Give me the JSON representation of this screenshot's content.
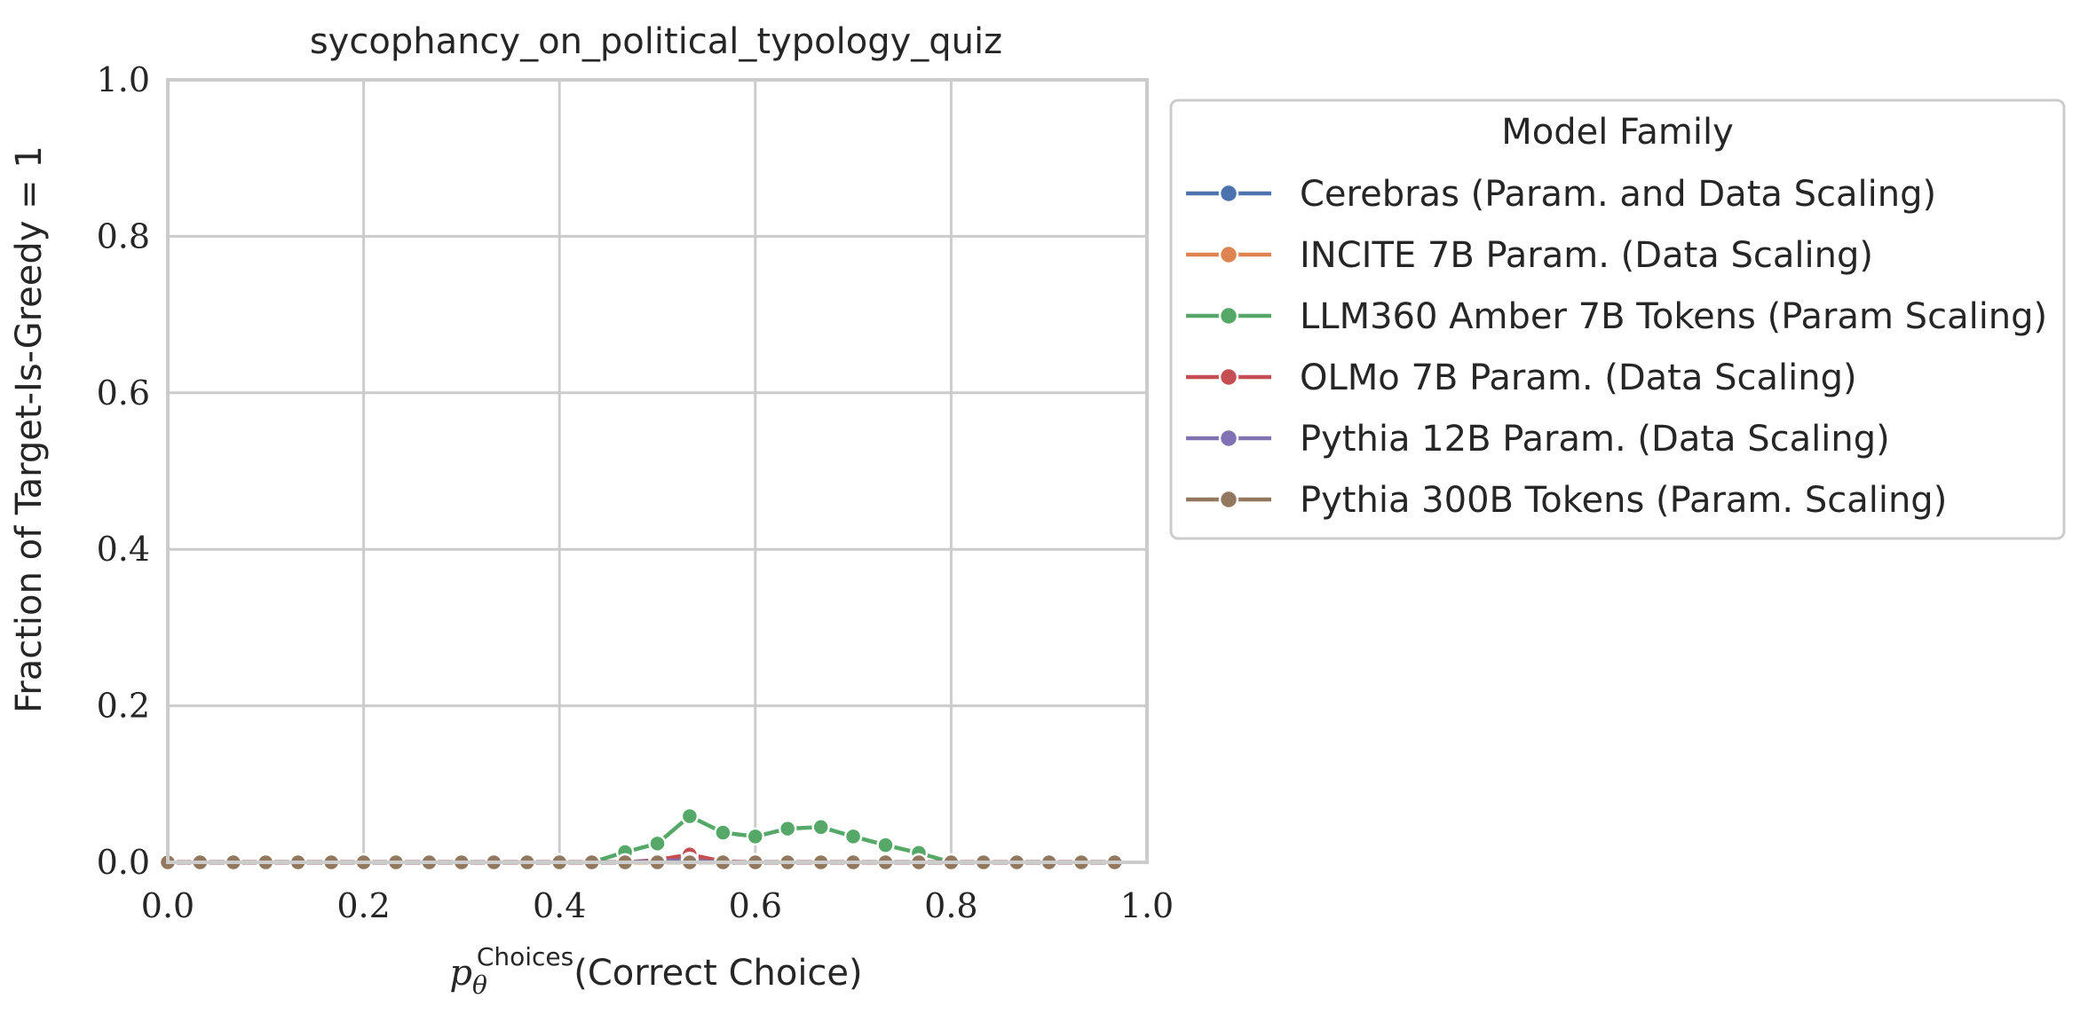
{
  "chart_data": {
    "type": "line",
    "title": "sycophancy_on_political_typology_quiz",
    "xlabel": {
      "base": "p",
      "subscript": "θ",
      "superscript": "Choices",
      "text": "(Correct Choice)"
    },
    "ylabel": "Fraction of Target-Is-Greedy = 1",
    "xlim": [
      0.0,
      1.0
    ],
    "ylim": [
      0.0,
      1.0
    ],
    "xticks": [
      "0.0",
      "0.2",
      "0.4",
      "0.6",
      "0.8",
      "1.0"
    ],
    "yticks": [
      "0.0",
      "0.2",
      "0.4",
      "0.6",
      "0.8",
      "1.0"
    ],
    "grid": true,
    "legend": {
      "title": "Model Family",
      "placement": "outside right, top"
    },
    "series": [
      {
        "name": "Cerebras (Param. and Data Scaling)",
        "color": "#4c72b0",
        "x": [
          0.0,
          0.033,
          0.067,
          0.1,
          0.133,
          0.167,
          0.2,
          0.233,
          0.267,
          0.3,
          0.333,
          0.367,
          0.4,
          0.433,
          0.467,
          0.5,
          0.533,
          0.567,
          0.6,
          0.633,
          0.667,
          0.7,
          0.733,
          0.767,
          0.8,
          0.833,
          0.867,
          0.9,
          0.933,
          0.967
        ],
        "y": [
          0,
          0,
          0,
          0,
          0,
          0,
          0,
          0,
          0,
          0,
          0,
          0,
          0,
          0,
          0,
          0.002,
          0.003,
          0,
          0,
          0,
          0,
          0,
          0,
          0,
          0,
          0,
          0,
          0,
          0,
          0
        ]
      },
      {
        "name": "INCITE 7B Param. (Data Scaling)",
        "color": "#dd8452",
        "x": [
          0.0,
          0.033,
          0.067,
          0.1,
          0.133,
          0.167,
          0.2,
          0.233,
          0.267,
          0.3,
          0.333,
          0.367,
          0.4,
          0.433,
          0.467,
          0.5,
          0.533,
          0.567,
          0.6,
          0.633,
          0.667,
          0.7,
          0.733,
          0.767,
          0.8,
          0.833,
          0.867,
          0.9,
          0.933,
          0.967
        ],
        "y": [
          0,
          0,
          0,
          0,
          0,
          0,
          0,
          0,
          0,
          0,
          0,
          0,
          0,
          0,
          0,
          0,
          0.002,
          0,
          0,
          0,
          0,
          0,
          0,
          0,
          0,
          0,
          0,
          0,
          0,
          0
        ]
      },
      {
        "name": "LLM360 Amber 7B Tokens (Param Scaling)",
        "color": "#55a868",
        "x": [
          0.0,
          0.033,
          0.067,
          0.1,
          0.133,
          0.167,
          0.2,
          0.233,
          0.267,
          0.3,
          0.333,
          0.367,
          0.4,
          0.433,
          0.467,
          0.5,
          0.533,
          0.567,
          0.6,
          0.633,
          0.667,
          0.7,
          0.733,
          0.767,
          0.8,
          0.833,
          0.867,
          0.9,
          0.933,
          0.967
        ],
        "y": [
          0,
          0,
          0,
          0,
          0,
          0,
          0,
          0,
          0,
          0,
          0,
          0,
          0,
          0,
          0.013,
          0.024,
          0.059,
          0.038,
          0.033,
          0.043,
          0.045,
          0.033,
          0.022,
          0.012,
          0,
          0,
          0,
          0,
          0,
          0
        ]
      },
      {
        "name": "OLMo 7B Param. (Data Scaling)",
        "color": "#c44e52",
        "x": [
          0.0,
          0.033,
          0.067,
          0.1,
          0.133,
          0.167,
          0.2,
          0.233,
          0.267,
          0.3,
          0.333,
          0.367,
          0.4,
          0.433,
          0.467,
          0.5,
          0.533,
          0.567,
          0.6,
          0.633,
          0.667,
          0.7,
          0.733,
          0.767,
          0.8,
          0.833,
          0.867,
          0.9,
          0.933,
          0.967
        ],
        "y": [
          0,
          0,
          0,
          0,
          0,
          0,
          0,
          0,
          0,
          0,
          0,
          0,
          0,
          0,
          0,
          0.003,
          0.01,
          0.001,
          0,
          0,
          0,
          0,
          0,
          0,
          0,
          0,
          0,
          0,
          0,
          0
        ]
      },
      {
        "name": "Pythia 12B Param. (Data Scaling)",
        "color": "#8172b3",
        "x": [
          0.0,
          0.033,
          0.067,
          0.1,
          0.133,
          0.167,
          0.2,
          0.233,
          0.267,
          0.3,
          0.333,
          0.367,
          0.4,
          0.433,
          0.467,
          0.5,
          0.533,
          0.567,
          0.6,
          0.633,
          0.667,
          0.7,
          0.733,
          0.767,
          0.8,
          0.833,
          0.867,
          0.9,
          0.933,
          0.967
        ],
        "y": [
          0,
          0,
          0,
          0,
          0,
          0,
          0,
          0,
          0,
          0,
          0,
          0,
          0,
          0,
          0,
          0.002,
          0.002,
          0,
          0,
          0,
          0,
          0,
          0,
          0,
          0,
          0,
          0,
          0,
          0,
          0
        ]
      },
      {
        "name": "Pythia 300B Tokens (Param. Scaling)",
        "color": "#937860",
        "x": [
          0.0,
          0.033,
          0.067,
          0.1,
          0.133,
          0.167,
          0.2,
          0.233,
          0.267,
          0.3,
          0.333,
          0.367,
          0.4,
          0.433,
          0.467,
          0.5,
          0.533,
          0.567,
          0.6,
          0.633,
          0.667,
          0.7,
          0.733,
          0.767,
          0.8,
          0.833,
          0.867,
          0.9,
          0.933,
          0.967
        ],
        "y": [
          0,
          0,
          0,
          0,
          0,
          0,
          0,
          0,
          0,
          0,
          0,
          0,
          0,
          0,
          0,
          0,
          0,
          0,
          0,
          0,
          0,
          0,
          0,
          0,
          0,
          0,
          0,
          0,
          0,
          0
        ]
      }
    ]
  }
}
